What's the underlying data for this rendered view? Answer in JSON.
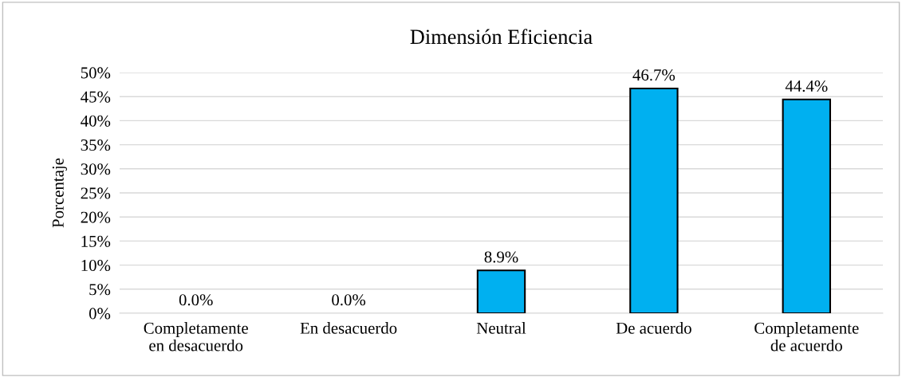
{
  "chart_data": {
    "type": "bar",
    "title": "Dimensión Eficiencia",
    "ylabel": "Porcentaje",
    "categories": [
      "Completamente\nen desacuerdo",
      "En desacuerdo",
      "Neutral",
      "De acuerdo",
      "Completamente\nde acuerdo"
    ],
    "values": [
      0.0,
      0.0,
      8.9,
      46.7,
      44.4
    ],
    "value_labels": [
      "0.0%",
      "0.0%",
      "8.9%",
      "46.7%",
      "44.4%"
    ],
    "color": "#00b0f0",
    "ylim": [
      0,
      50
    ],
    "yticks": [
      {
        "value": 0,
        "label": "0%"
      },
      {
        "value": 5,
        "label": "5%"
      },
      {
        "value": 10,
        "label": "10%"
      },
      {
        "value": 15,
        "label": "15%"
      },
      {
        "value": 20,
        "label": "20%"
      },
      {
        "value": 25,
        "label": "25%"
      },
      {
        "value": 30,
        "label": "30%"
      },
      {
        "value": 35,
        "label": "35%"
      },
      {
        "value": 40,
        "label": "40%"
      },
      {
        "value": 45,
        "label": "45%"
      },
      {
        "value": 50,
        "label": "50%"
      }
    ],
    "grid": "y"
  }
}
